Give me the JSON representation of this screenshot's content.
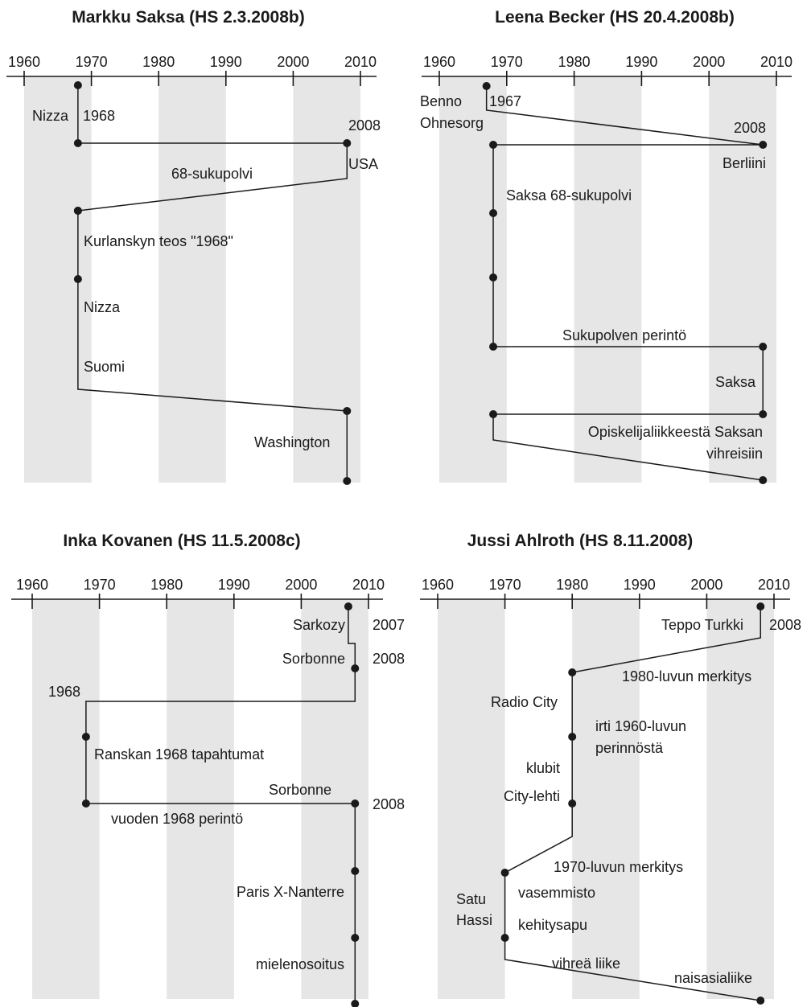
{
  "colors": {
    "band": "#e6e6e6",
    "ink": "#1a1a1a"
  },
  "ticks": [
    1960,
    1970,
    1980,
    1990,
    2000,
    2010
  ],
  "panels": [
    {
      "title": "Markku Saksa (HS 2.3.2008b)",
      "points": [
        {
          "year": 1968
        },
        {
          "year": 1968
        },
        {
          "year": 2008
        },
        {
          "year": 2008
        },
        {
          "year": 1968
        },
        {
          "year": 1968
        },
        {
          "year": 1968
        },
        {
          "year": 1968
        },
        {
          "year": 1968
        },
        {
          "year": 2008
        },
        {
          "year": 2008
        }
      ],
      "dots": [
        0,
        1,
        2,
        4,
        5,
        6,
        9,
        10
      ],
      "labels": [
        "Nizza",
        "1968",
        "2008",
        "USA",
        "68-sukupolvi",
        "Kurlanskyn teos \"1968\"",
        "Nizza",
        "Suomi",
        "Washington"
      ]
    },
    {
      "title": "Leena Becker (HS 20.4.2008b)",
      "points": [
        {
          "year": 1967
        },
        {
          "year": 1967
        },
        {
          "year": 2008
        },
        {
          "year": 1968
        },
        {
          "year": 1968
        },
        {
          "year": 1968
        },
        {
          "year": 1968
        },
        {
          "year": 2008
        },
        {
          "year": 2008
        },
        {
          "year": 1968
        },
        {
          "year": 1968
        },
        {
          "year": 2008
        }
      ],
      "dots": [
        0,
        2,
        3,
        4,
        5,
        6,
        7,
        8,
        9,
        11
      ],
      "labels": [
        "Benno",
        "Ohnesorg",
        "1967",
        "2008",
        "Berliini",
        "Saksa 68-sukupolvi",
        "Sukupolven perintö",
        "Saksa",
        "Opiskelijaliikkeestä Saksan",
        "vihreisiin"
      ]
    },
    {
      "title": "Inka Kovanen (HS 11.5.2008c)",
      "points": [
        {
          "year": 2007
        },
        {
          "year": 2007
        },
        {
          "year": 2008
        },
        {
          "year": 2008
        },
        {
          "year": 2008
        },
        {
          "year": 1968
        },
        {
          "year": 1968
        },
        {
          "year": 1968
        },
        {
          "year": 2008
        },
        {
          "year": 2008
        },
        {
          "year": 2008
        },
        {
          "year": 2008
        }
      ],
      "dots": [
        0,
        3,
        6,
        7,
        8,
        9,
        10,
        11
      ],
      "labels": [
        "Sarkozy",
        "2007",
        "Sorbonne",
        "2008",
        "1968",
        "Ranskan 1968 tapahtumat",
        "Sorbonne",
        "2008",
        "vuoden 1968 perintö",
        "Paris X-Nanterre",
        "mielenosoitus"
      ]
    },
    {
      "title": "Jussi Ahlroth (HS 8.11.2008)",
      "points": [
        {
          "year": 2008
        },
        {
          "year": 2008
        },
        {
          "year": 1980
        },
        {
          "year": 1980
        },
        {
          "year": 1980
        },
        {
          "year": 1980
        },
        {
          "year": 1970
        },
        {
          "year": 1970
        },
        {
          "year": 1970
        },
        {
          "year": 2008
        }
      ],
      "dots": [
        0,
        2,
        3,
        4,
        6,
        7,
        9
      ],
      "labels": [
        "Teppo Turkki",
        "2008",
        "1980-luvun merkitys",
        "Radio City",
        "irti 1960-luvun",
        "perinnöstä",
        "klubit",
        "City-lehti",
        "1970-luvun merkitys",
        "vasemmisto",
        "Satu",
        "Hassi",
        "kehitysapu",
        "vihreä liike",
        "naisasialiike"
      ]
    }
  ]
}
